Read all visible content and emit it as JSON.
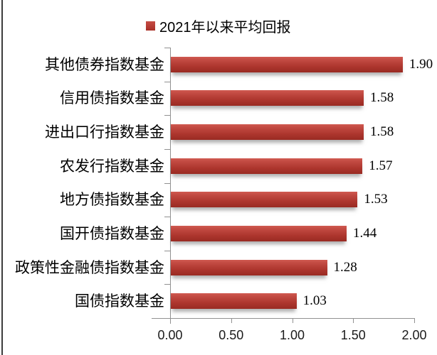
{
  "legend": {
    "label": "2021年以来平均回报"
  },
  "colors": {
    "bar_top": "#d05a51",
    "bar_bottom": "#992a22",
    "legend_marker": "#b53a31",
    "axis": "#919191",
    "text": "#000000"
  },
  "chart_data": {
    "type": "bar",
    "orientation": "horizontal",
    "title": "",
    "legend": [
      "2021年以来平均回报"
    ],
    "legend_position": "top",
    "categories": [
      "其他债券指数基金",
      "信用债指数基金",
      "进出口行指数基金",
      "农发行指数基金",
      "地方债指数基金",
      "国开债指数基金",
      "政策性金融债指数基金",
      "国债指数基金"
    ],
    "values": [
      1.9,
      1.58,
      1.58,
      1.57,
      1.53,
      1.44,
      1.28,
      1.03
    ],
    "value_labels": [
      "1.90",
      "1.58",
      "1.58",
      "1.57",
      "1.53",
      "1.44",
      "1.28",
      "1.03"
    ],
    "xlim": [
      0,
      2.0
    ],
    "x_ticks": [
      0,
      0.5,
      1,
      1.5,
      2
    ],
    "x_tick_labels": [
      "0.00",
      "0.50",
      "1.00",
      "1.50",
      "2.00"
    ],
    "grid": false
  }
}
